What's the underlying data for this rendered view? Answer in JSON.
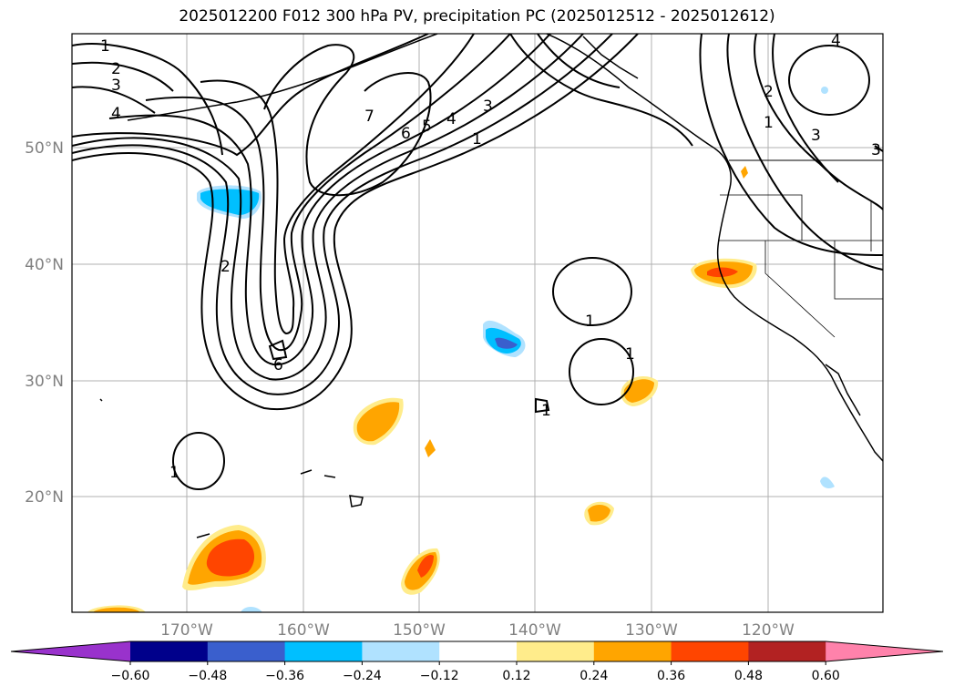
{
  "title": "2025012200 F012 300 hPa PV, precipitation PC (2025012512 - 2025012612)",
  "map": {
    "lat_labels": [
      "50°N",
      "40°N",
      "30°N",
      "20°N"
    ],
    "lon_labels": [
      "170°W",
      "160°W",
      "150°W",
      "140°W",
      "130°W",
      "120°W"
    ],
    "gridlines": true
  },
  "pv_contour_labels": [
    "1",
    "2",
    "3",
    "4",
    "7",
    "6",
    "5",
    "4",
    "3",
    "1",
    "2",
    "6",
    "1",
    "1",
    "1",
    "1",
    "2",
    "1",
    "3",
    "4",
    "3"
  ],
  "colorbar": {
    "tick_labels": [
      "−0.60",
      "−0.48",
      "−0.36",
      "−0.24",
      "−0.12",
      "0.12",
      "0.24",
      "0.36",
      "0.48",
      "0.60"
    ],
    "colors": [
      "#9932cc",
      "#00008b",
      "#3a5fcd",
      "#00bfff",
      "#b0e2ff",
      "#ffffff",
      "#ffec8b",
      "#ffa500",
      "#ff4500",
      "#b22222",
      "#ff82ab"
    ]
  }
}
